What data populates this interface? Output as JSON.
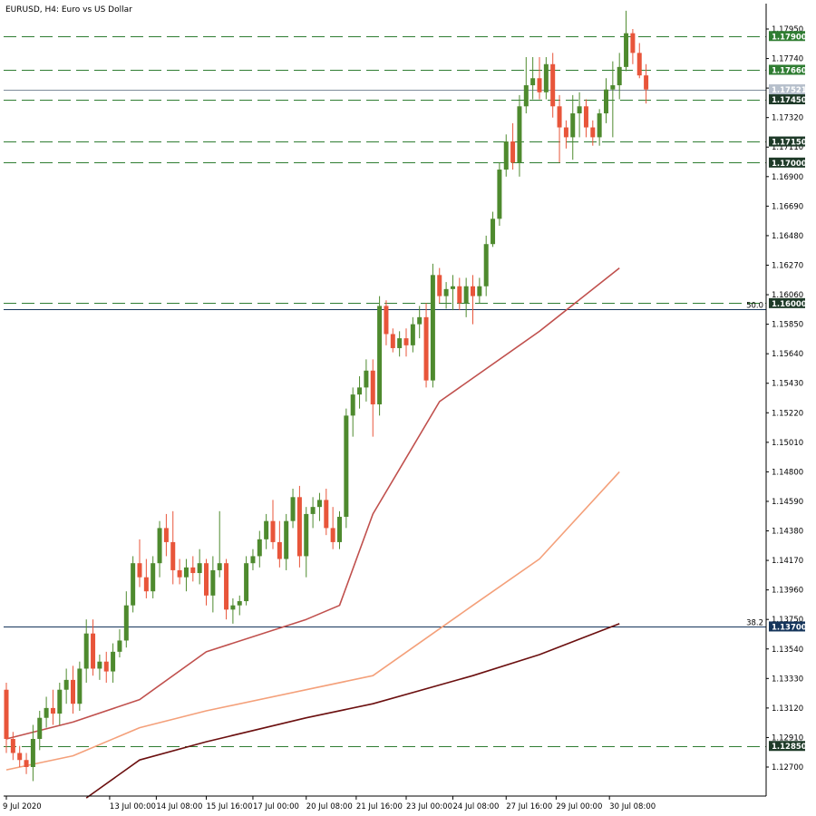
{
  "chart_data": {
    "type": "candlestick",
    "title": "EURUSD, H4:  Euro vs US Dollar",
    "symbol": "EURUSD",
    "timeframe": "H4",
    "description": "Euro vs US Dollar",
    "ylim": [
      1.1258,
      1.1808
    ],
    "y_ticks": [
      "1.17950",
      "1.17740",
      "1.17530",
      "1.17320",
      "1.17110",
      "1.16900",
      "1.16690",
      "1.16480",
      "1.16270",
      "1.16060",
      "1.15850",
      "1.15640",
      "1.15430",
      "1.15220",
      "1.15010",
      "1.14800",
      "1.14590",
      "1.14380",
      "1.14170",
      "1.13960",
      "1.13750",
      "1.13540",
      "1.13330",
      "1.13120",
      "1.12910",
      "1.12700"
    ],
    "x_ticks": [
      "9 Jul 2020",
      "13 Jul 00:00",
      "14 Jul 08:00",
      "15 Jul 16:00",
      "17 Jul 00:00",
      "20 Jul 08:00",
      "21 Jul 16:00",
      "23 Jul 00:00",
      "24 Jul 08:00",
      "27 Jul 16:00",
      "29 Jul 00:00",
      "30 Jul 08:00"
    ],
    "current_price": "1.17521",
    "levels": [
      {
        "price": 1.179,
        "label": "1.17900",
        "style": "dashed"
      },
      {
        "price": 1.1766,
        "label": "1.17660",
        "style": "dashed"
      },
      {
        "price": 1.1745,
        "label": "1.17450",
        "style": "dashed"
      },
      {
        "price": 1.1715,
        "label": "1.17150",
        "style": "dashed"
      },
      {
        "price": 1.17,
        "label": "1.17000",
        "style": "dashed"
      },
      {
        "price": 1.16,
        "label": "1.16000",
        "style": "dashed"
      },
      {
        "price": 1.1285,
        "label": "1.12850",
        "style": "dashed"
      }
    ],
    "fib_levels": [
      {
        "price": 1.1596,
        "label": "50.0"
      },
      {
        "price": 1.137,
        "label": "38.2",
        "tag": "1.13700"
      }
    ],
    "candles_ohlc": [
      [
        1.1325,
        1.133,
        1.128,
        1.129
      ],
      [
        1.129,
        1.1295,
        1.1275,
        1.128
      ],
      [
        1.128,
        1.1285,
        1.127,
        1.1275
      ],
      [
        1.1275,
        1.128,
        1.1265,
        1.127
      ],
      [
        1.127,
        1.13,
        1.126,
        1.129
      ],
      [
        1.129,
        1.131,
        1.1282,
        1.1305
      ],
      [
        1.1305,
        1.132,
        1.1298,
        1.1312
      ],
      [
        1.1312,
        1.1325,
        1.13,
        1.1308
      ],
      [
        1.1308,
        1.133,
        1.13,
        1.1325
      ],
      [
        1.1325,
        1.134,
        1.1315,
        1.1332
      ],
      [
        1.1332,
        1.1342,
        1.1308,
        1.1315
      ],
      [
        1.1315,
        1.1345,
        1.131,
        1.134
      ],
      [
        1.134,
        1.1375,
        1.133,
        1.1365
      ],
      [
        1.1365,
        1.1375,
        1.1335,
        1.134
      ],
      [
        1.134,
        1.135,
        1.1332,
        1.1345
      ],
      [
        1.1345,
        1.1352,
        1.133,
        1.1338
      ],
      [
        1.1338,
        1.1358,
        1.133,
        1.1352
      ],
      [
        1.1352,
        1.1368,
        1.1348,
        1.136
      ],
      [
        1.136,
        1.1395,
        1.1355,
        1.1385
      ],
      [
        1.1385,
        1.142,
        1.138,
        1.1415
      ],
      [
        1.1415,
        1.1432,
        1.1398,
        1.1405
      ],
      [
        1.1405,
        1.1418,
        1.139,
        1.1395
      ],
      [
        1.1395,
        1.142,
        1.139,
        1.1415
      ],
      [
        1.1415,
        1.1445,
        1.1405,
        1.144
      ],
      [
        1.144,
        1.145,
        1.142,
        1.143
      ],
      [
        1.143,
        1.1452,
        1.14,
        1.141
      ],
      [
        1.141,
        1.1418,
        1.14,
        1.1405
      ],
      [
        1.1405,
        1.1418,
        1.1395,
        1.1412
      ],
      [
        1.1412,
        1.142,
        1.1402,
        1.1408
      ],
      [
        1.1408,
        1.1425,
        1.14,
        1.1415
      ],
      [
        1.1415,
        1.1418,
        1.1385,
        1.1392
      ],
      [
        1.1392,
        1.142,
        1.138,
        1.141
      ],
      [
        1.141,
        1.1452,
        1.1405,
        1.1415
      ],
      [
        1.1415,
        1.1418,
        1.1375,
        1.1382
      ],
      [
        1.1382,
        1.139,
        1.1372,
        1.1385
      ],
      [
        1.1385,
        1.1392,
        1.1378,
        1.1388
      ],
      [
        1.1388,
        1.142,
        1.1385,
        1.1415
      ],
      [
        1.1415,
        1.1425,
        1.141,
        1.142
      ],
      [
        1.142,
        1.1438,
        1.1412,
        1.1432
      ],
      [
        1.1432,
        1.145,
        1.1425,
        1.1445
      ],
      [
        1.1445,
        1.146,
        1.1425,
        1.143
      ],
      [
        1.143,
        1.1445,
        1.1412,
        1.1418
      ],
      [
        1.1418,
        1.145,
        1.141,
        1.1445
      ],
      [
        1.1445,
        1.1468,
        1.144,
        1.1462
      ],
      [
        1.1462,
        1.147,
        1.1412,
        1.142
      ],
      [
        1.142,
        1.1455,
        1.1405,
        1.145
      ],
      [
        1.145,
        1.1462,
        1.144,
        1.1455
      ],
      [
        1.1455,
        1.1465,
        1.1445,
        1.146
      ],
      [
        1.146,
        1.1468,
        1.1435,
        1.144
      ],
      [
        1.144,
        1.1455,
        1.1425,
        1.143
      ],
      [
        1.143,
        1.1452,
        1.1425,
        1.1448
      ],
      [
        1.1448,
        1.1525,
        1.144,
        1.152
      ],
      [
        1.152,
        1.154,
        1.1505,
        1.1535
      ],
      [
        1.1535,
        1.1548,
        1.1525,
        1.154
      ],
      [
        1.154,
        1.156,
        1.153,
        1.1552
      ],
      [
        1.1552,
        1.156,
        1.1505,
        1.1528
      ],
      [
        1.1528,
        1.1605,
        1.152,
        1.1598
      ],
      [
        1.1598,
        1.1602,
        1.157,
        1.1578
      ],
      [
        1.1578,
        1.1582,
        1.1565,
        1.1568
      ],
      [
        1.1568,
        1.158,
        1.1562,
        1.1575
      ],
      [
        1.1575,
        1.1582,
        1.1562,
        1.157
      ],
      [
        1.157,
        1.159,
        1.1565,
        1.1585
      ],
      [
        1.1585,
        1.1598,
        1.1575,
        1.159
      ],
      [
        1.159,
        1.16,
        1.154,
        1.1545
      ],
      [
        1.1545,
        1.1628,
        1.154,
        1.162
      ],
      [
        1.162,
        1.1625,
        1.16,
        1.1605
      ],
      [
        1.1605,
        1.1615,
        1.1596,
        1.161
      ],
      [
        1.161,
        1.162,
        1.1595,
        1.1612
      ],
      [
        1.1612,
        1.1618,
        1.1595,
        1.16
      ],
      [
        1.16,
        1.1618,
        1.159,
        1.1612
      ],
      [
        1.1612,
        1.162,
        1.1585,
        1.1605
      ],
      [
        1.1605,
        1.1618,
        1.16,
        1.1612
      ],
      [
        1.1612,
        1.1648,
        1.1605,
        1.1642
      ],
      [
        1.1642,
        1.1665,
        1.164,
        1.166
      ],
      [
        1.166,
        1.17,
        1.1655,
        1.1695
      ],
      [
        1.1695,
        1.172,
        1.169,
        1.1715
      ],
      [
        1.1715,
        1.1728,
        1.1695,
        1.17
      ],
      [
        1.17,
        1.1748,
        1.169,
        1.174
      ],
      [
        1.174,
        1.1775,
        1.1735,
        1.1755
      ],
      [
        1.1755,
        1.1775,
        1.1745,
        1.176
      ],
      [
        1.176,
        1.1775,
        1.1745,
        1.175
      ],
      [
        1.175,
        1.1775,
        1.1745,
        1.177
      ],
      [
        1.177,
        1.1778,
        1.1732,
        1.174
      ],
      [
        1.174,
        1.1748,
        1.17,
        1.1725
      ],
      [
        1.1725,
        1.173,
        1.171,
        1.1718
      ],
      [
        1.1718,
        1.1748,
        1.1702,
        1.1735
      ],
      [
        1.1735,
        1.175,
        1.1718,
        1.174
      ],
      [
        1.174,
        1.1745,
        1.1718,
        1.1725
      ],
      [
        1.1725,
        1.173,
        1.1712,
        1.1718
      ],
      [
        1.1718,
        1.1738,
        1.1712,
        1.1735
      ],
      [
        1.1735,
        1.176,
        1.1728,
        1.1752
      ],
      [
        1.1752,
        1.1772,
        1.1718,
        1.1755
      ],
      [
        1.1755,
        1.1778,
        1.1745,
        1.1768
      ],
      [
        1.1768,
        1.1808,
        1.1765,
        1.1792
      ],
      [
        1.1792,
        1.1795,
        1.177,
        1.1778
      ],
      [
        1.1778,
        1.1785,
        1.176,
        1.1762
      ],
      [
        1.1762,
        1.177,
        1.1742,
        1.1752
      ]
    ],
    "moving_averages": [
      {
        "name": "",
        "color": "#c0504d",
        "points": [
          [
            0,
            1.129
          ],
          [
            10,
            1.1302
          ],
          [
            20,
            1.1318
          ],
          [
            30,
            1.1352
          ],
          [
            45,
            1.1375
          ],
          [
            50,
            1.1385
          ],
          [
            55,
            1.145
          ],
          [
            65,
            1.153
          ],
          [
            80,
            1.158
          ],
          [
            92,
            1.1625
          ]
        ]
      },
      {
        "name": "",
        "color": "#f4a07a",
        "points": [
          [
            0,
            1.1268
          ],
          [
            10,
            1.1278
          ],
          [
            20,
            1.1298
          ],
          [
            30,
            1.131
          ],
          [
            45,
            1.1325
          ],
          [
            55,
            1.1335
          ],
          [
            70,
            1.1385
          ],
          [
            80,
            1.1418
          ],
          [
            92,
            1.148
          ]
        ]
      },
      {
        "name": "",
        "color": "#6b0f0f",
        "points": [
          [
            12,
            1.1248
          ],
          [
            20,
            1.1275
          ],
          [
            30,
            1.1288
          ],
          [
            45,
            1.1305
          ],
          [
            55,
            1.1315
          ],
          [
            70,
            1.1335
          ],
          [
            80,
            1.135
          ],
          [
            92,
            1.1372
          ]
        ]
      }
    ],
    "colors": {
      "bull": "#4e8a2e",
      "bear": "#e8553a",
      "bull_tag": "#2f7d32",
      "grid": "#000000",
      "fib_tag": "#15355b",
      "price_tag": "#b7c0cc"
    }
  }
}
